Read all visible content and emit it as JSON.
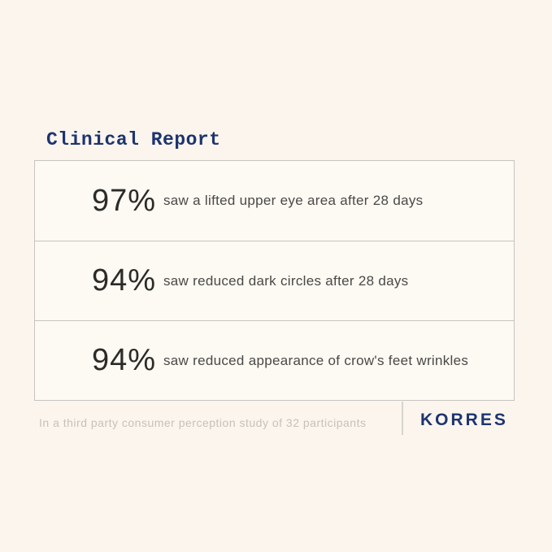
{
  "title": "Clinical Report",
  "stats": [
    {
      "percent": "97%",
      "description": "saw a lifted upper eye area after 28 days"
    },
    {
      "percent": "94%",
      "description": "saw reduced dark circles after 28 days"
    },
    {
      "percent": "94%",
      "description": "saw reduced appearance of crow's feet wrinkles"
    }
  ],
  "footer": {
    "disclaimer": "In a third party consumer perception study of 32 participants",
    "brand": "KORRES"
  },
  "colors": {
    "background": "#fbf5ed",
    "panel": "#fdf9f3",
    "border": "#c7c4bf",
    "navy": "#1e3470",
    "number": "#2b2b28",
    "description": "#4a4946",
    "disclaimer": "#c7c1b9",
    "divider": "#d8d4ce"
  }
}
